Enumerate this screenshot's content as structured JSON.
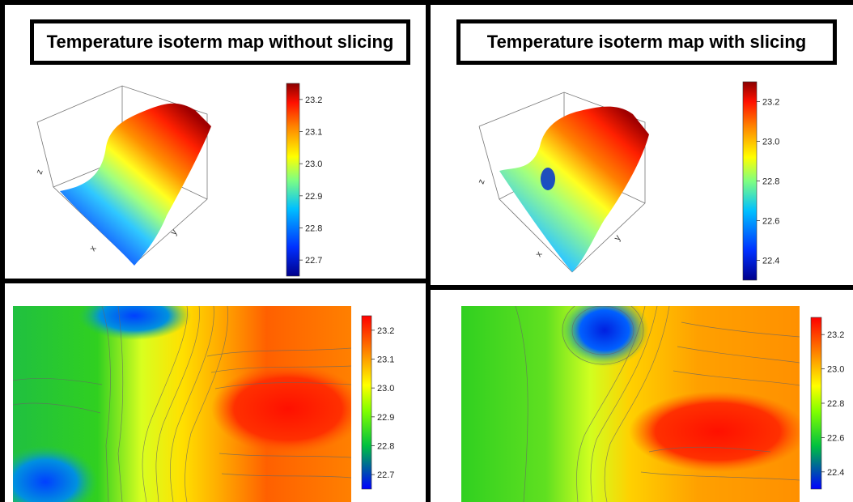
{
  "panels": {
    "top_left": {
      "title": "Temperature isoterm map without slicing"
    },
    "top_right": {
      "title": "Temperature isoterm map with slicing"
    }
  },
  "axis_letters": {
    "x": "x",
    "y": "y",
    "z": "z"
  },
  "chart_data": [
    {
      "type": "surface",
      "panel": "top-left",
      "colorbar": {
        "ticks": [
          23.2,
          23.1,
          23.0,
          22.9,
          22.8,
          22.7
        ],
        "tick_labels": [
          "23.2",
          "23.1",
          "23.0",
          "22.9",
          "22.8",
          "22.7"
        ],
        "range": [
          22.65,
          23.25
        ]
      },
      "colorscale": [
        "#00008b",
        "#0000ff",
        "#00bfff",
        "#7fff7f",
        "#ffff00",
        "#ff7f00",
        "#ff0000",
        "#8b0000"
      ]
    },
    {
      "type": "surface",
      "panel": "top-right",
      "colorbar": {
        "ticks": [
          23.2,
          23.0,
          22.8,
          22.6,
          22.4
        ],
        "tick_labels": [
          "23.2",
          "23.0",
          "22.8",
          "22.6",
          "22.4"
        ],
        "range": [
          22.3,
          23.3
        ]
      },
      "colorscale": [
        "#00008b",
        "#0000ff",
        "#00bfff",
        "#7fff7f",
        "#ffff00",
        "#ff7f00",
        "#ff0000",
        "#8b0000"
      ]
    },
    {
      "type": "heatmap",
      "panel": "bottom-left",
      "colorbar": {
        "ticks": [
          23.2,
          23.1,
          23.0,
          22.9,
          22.8,
          22.7
        ],
        "tick_labels": [
          "23.2",
          "23.1",
          "23.0",
          "22.9",
          "22.8",
          "22.7"
        ],
        "range": [
          22.65,
          23.25
        ]
      },
      "colorscale": [
        "#0000ff",
        "#00ff00",
        "#ffff00",
        "#ff8000",
        "#ff0000"
      ]
    },
    {
      "type": "heatmap",
      "panel": "bottom-right",
      "colorbar": {
        "ticks": [
          23.2,
          23.0,
          22.8,
          22.6,
          22.4
        ],
        "tick_labels": [
          "23.2",
          "23.0",
          "22.8",
          "22.6",
          "22.4"
        ],
        "range": [
          22.3,
          23.3
        ]
      },
      "colorscale": [
        "#0000ff",
        "#00ff00",
        "#ffff00",
        "#ff8000",
        "#ff0000"
      ]
    }
  ]
}
